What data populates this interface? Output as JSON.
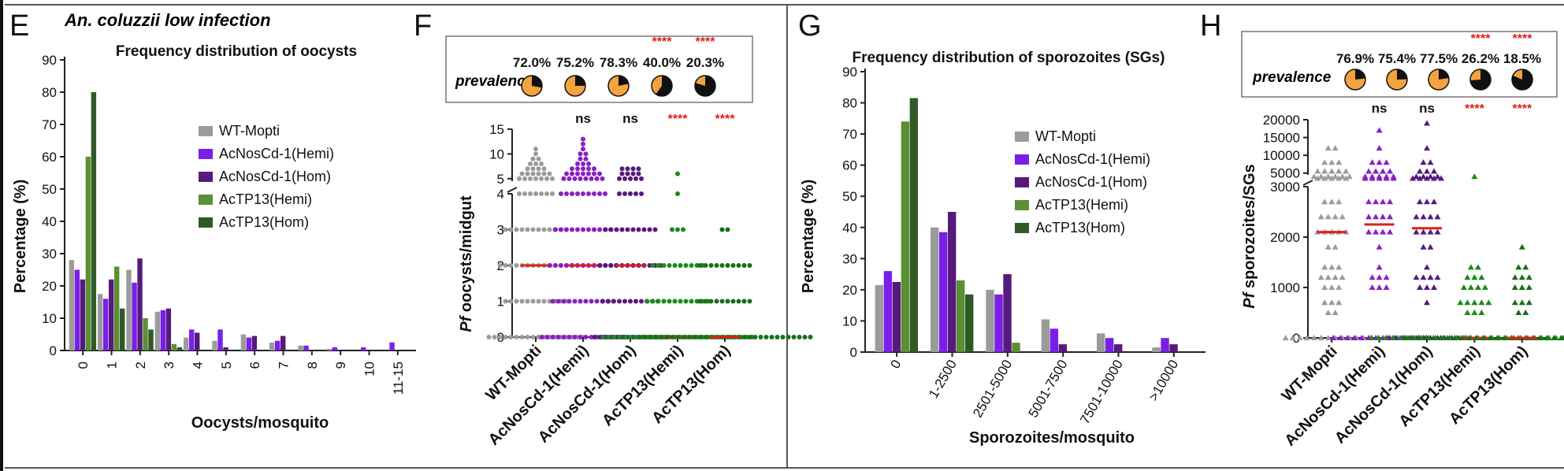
{
  "panels": {
    "E": {
      "letter": "E",
      "subtitle": "An. coluzzii low infection",
      "title": "Frequency distribution of oocysts",
      "ylabel": "Percentage (%)",
      "xlabel": "Oocysts/mosquito"
    },
    "F": {
      "letter": "F",
      "prevalence_label": "prevalence",
      "ylabel_italic": "Pf",
      "ylabel_rest": " oocysts/midgut"
    },
    "G": {
      "letter": "G",
      "title": "Frequency distribution of sporozoites (SGs)",
      "ylabel": "Percentage (%)",
      "xlabel": "Sporozoites/mosquito"
    },
    "H": {
      "letter": "H",
      "prevalence_label": "prevalence",
      "ylabel_italic": "Pf",
      "ylabel_rest": " sporozoites/SGs"
    }
  },
  "colors": {
    "wt": "#9b9b9b",
    "hemi_nos": "#7a1fe6",
    "hom_nos": "#561a7c",
    "hemi_tp": "#5b8f34",
    "hom_tp": "#2f5a26",
    "median": "#e0201b",
    "star": "#e0201b",
    "pie_fill": "#f4a340"
  },
  "chart_data": [
    {
      "id": "E",
      "type": "bar",
      "title": "Frequency distribution of oocysts",
      "xlabel": "Oocysts/mosquito",
      "ylabel": "Percentage (%)",
      "ylim": [
        0,
        90
      ],
      "yticks": [
        0,
        10,
        20,
        30,
        40,
        50,
        60,
        70,
        80,
        90
      ],
      "categories": [
        "0",
        "1",
        "2",
        "3",
        "4",
        "5",
        "6",
        "7",
        "8",
        "9",
        "10",
        "11-15"
      ],
      "legend_position": "right",
      "series": [
        {
          "name": "WT-Mopti",
          "color": "#9b9b9b",
          "values": [
            28,
            17.5,
            25,
            12,
            4,
            3,
            5,
            2.5,
            1.5,
            0.5,
            0,
            0
          ]
        },
        {
          "name": "AcNosCd-1(Hemi)",
          "color": "#7a1fe6",
          "values": [
            25,
            16,
            21,
            12.5,
            6.5,
            6.5,
            4,
            3,
            1.5,
            1,
            1,
            2.5
          ]
        },
        {
          "name": "AcNosCd-1(Hom)",
          "color": "#561a7c",
          "values": [
            22,
            22,
            28.5,
            13,
            5.5,
            1,
            4.5,
            4.5,
            0,
            0,
            0,
            0
          ]
        },
        {
          "name": "AcTP13(Hemi)",
          "color": "#5b8f34",
          "values": [
            60,
            26,
            10,
            2,
            0,
            0,
            0,
            0,
            0,
            0,
            0,
            0
          ]
        },
        {
          "name": "AcTP13(Hom)",
          "color": "#2f5a26",
          "values": [
            80,
            13,
            6.5,
            1,
            0,
            0,
            0,
            0,
            0,
            0,
            0,
            0
          ]
        }
      ]
    },
    {
      "id": "F",
      "type": "scatter",
      "ylabel": "Pf oocysts/midgut",
      "yticks_lower": [
        0,
        1,
        2,
        3,
        4
      ],
      "yticks_upper": [
        5,
        10,
        15
      ],
      "categories": [
        "WT-Mopti",
        "AcNosCd-1(Hemi)",
        "AcNosCd-1(Hom)",
        "AcTP13(Hemi)",
        "AcTP13(Hom)"
      ],
      "colors": [
        "#9b9b9b",
        "#8a1fc4",
        "#561a7c",
        "#1a8a1a",
        "#1a6e1a"
      ],
      "prevalence": [
        "72.0%",
        "75.2%",
        "78.3%",
        "40.0%",
        "20.3%"
      ],
      "prevalence_fraction": [
        0.72,
        0.752,
        0.783,
        0.4,
        0.203
      ],
      "stars_top": [
        "",
        "",
        "",
        "****",
        "****"
      ],
      "significance": [
        "",
        "ns",
        "ns",
        "****",
        "****"
      ],
      "medians": [
        2,
        2,
        2,
        0,
        0
      ],
      "points": [
        {
          "y": 0,
          "n": [
            18,
            16,
            14,
            28,
            32
          ]
        },
        {
          "y": 1,
          "n": [
            12,
            12,
            11,
            12,
            10
          ]
        },
        {
          "y": 2,
          "n": [
            14,
            13,
            12,
            10,
            10
          ]
        },
        {
          "y": 3,
          "n": [
            12,
            11,
            10,
            3,
            2
          ]
        },
        {
          "y": 4,
          "n": [
            7,
            9,
            5,
            1,
            0
          ]
        },
        {
          "y": 5,
          "n": [
            7,
            8,
            5,
            0,
            0
          ]
        },
        {
          "y": 6,
          "n": [
            6,
            7,
            4,
            1,
            0
          ]
        },
        {
          "y": 7,
          "n": [
            4,
            5,
            4,
            0,
            0
          ]
        },
        {
          "y": 8,
          "n": [
            3,
            3,
            0,
            0,
            0
          ]
        },
        {
          "y": 9,
          "n": [
            2,
            2,
            0,
            0,
            0
          ]
        },
        {
          "y": 10,
          "n": [
            1,
            2,
            0,
            0,
            0
          ]
        },
        {
          "y": 11,
          "n": [
            1,
            1,
            0,
            0,
            0
          ]
        },
        {
          "y": 12,
          "n": [
            0,
            1,
            0,
            0,
            0
          ]
        },
        {
          "y": 13,
          "n": [
            0,
            1,
            0,
            0,
            0
          ]
        }
      ]
    },
    {
      "id": "G",
      "type": "bar",
      "title": "Frequency distribution of sporozoites (SGs)",
      "xlabel": "Sporozoites/mosquito",
      "ylabel": "Percentage (%)",
      "ylim": [
        0,
        90
      ],
      "yticks": [
        0,
        10,
        20,
        30,
        40,
        50,
        60,
        70,
        80,
        90
      ],
      "categories": [
        "0",
        "1-2500",
        "2501-5000",
        "5001-7500",
        "7501-10000",
        ">10000"
      ],
      "legend_position": "right",
      "series": [
        {
          "name": "WT-Mopti",
          "color": "#9b9b9b",
          "values": [
            21.5,
            40,
            20,
            10.5,
            6,
            1.5
          ]
        },
        {
          "name": "AcNosCd-1(Hemi)",
          "color": "#7a1fe6",
          "values": [
            26,
            38.5,
            18.5,
            7.5,
            4.5,
            4.5
          ]
        },
        {
          "name": "AcNosCd-1(Hom)",
          "color": "#561a7c",
          "values": [
            22.5,
            45,
            25,
            2.5,
            2.5,
            2.5
          ]
        },
        {
          "name": "AcTP13(Hemi)",
          "color": "#5b8f34",
          "values": [
            74,
            23,
            3,
            0,
            0,
            0
          ]
        },
        {
          "name": "AcTP13(Hom)",
          "color": "#2f5a26",
          "values": [
            81.5,
            18.5,
            0,
            0,
            0,
            0
          ]
        }
      ]
    },
    {
      "id": "H",
      "type": "scatter",
      "ylabel": "Pf sporozoites/SGs",
      "yticks_lower": [
        0,
        1000,
        2000,
        3000
      ],
      "yticks_upper": [
        5000,
        10000,
        15000,
        20000
      ],
      "categories": [
        "WT-Mopti",
        "AcNosCd-1(Hemi)",
        "AcNosCd-1(Hom)",
        "AcTP13(Hemi)",
        "AcTP13(Hom)"
      ],
      "colors": [
        "#9b9b9b",
        "#8a1fc4",
        "#561a7c",
        "#1a8a1a",
        "#1a6e1a"
      ],
      "prevalence": [
        "76.9%",
        "75.4%",
        "77.5%",
        "26.2%",
        "18.5%"
      ],
      "prevalence_fraction": [
        0.769,
        0.754,
        0.775,
        0.262,
        0.185
      ],
      "stars_top": [
        "",
        "",
        "",
        "****",
        "****"
      ],
      "significance": [
        "",
        "ns",
        "ns",
        "****",
        "****"
      ],
      "medians": [
        2100,
        2250,
        2175,
        0,
        0
      ],
      "points": [
        {
          "y": 0,
          "n": [
            14,
            14,
            12,
            30,
            34
          ]
        },
        {
          "y": 500,
          "n": [
            2,
            0,
            0,
            3,
            2
          ]
        },
        {
          "y": 700,
          "n": [
            3,
            0,
            1,
            5,
            3
          ]
        },
        {
          "y": 1000,
          "n": [
            3,
            3,
            3,
            4,
            3
          ]
        },
        {
          "y": 1200,
          "n": [
            4,
            3,
            4,
            3,
            3
          ]
        },
        {
          "y": 1400,
          "n": [
            3,
            1,
            1,
            2,
            2
          ]
        },
        {
          "y": 1800,
          "n": [
            2,
            1,
            2,
            0,
            1
          ]
        },
        {
          "y": 2100,
          "n": [
            5,
            4,
            4,
            0,
            0
          ]
        },
        {
          "y": 2400,
          "n": [
            4,
            4,
            4,
            0,
            0
          ]
        },
        {
          "y": 2700,
          "n": [
            3,
            4,
            3,
            0,
            0
          ]
        },
        {
          "y": 3500,
          "n": [
            5,
            5,
            5,
            0,
            0
          ]
        },
        {
          "y": 4000,
          "n": [
            6,
            5,
            4,
            1,
            0
          ]
        },
        {
          "y": 5500,
          "n": [
            5,
            4,
            3,
            0,
            0
          ]
        },
        {
          "y": 8000,
          "n": [
            3,
            3,
            2,
            0,
            0
          ]
        },
        {
          "y": 12000,
          "n": [
            2,
            1,
            1,
            0,
            0
          ]
        },
        {
          "y": 17000,
          "n": [
            0,
            1,
            0,
            0,
            0
          ]
        },
        {
          "y": 19000,
          "n": [
            0,
            0,
            1,
            0,
            0
          ]
        }
      ]
    }
  ]
}
